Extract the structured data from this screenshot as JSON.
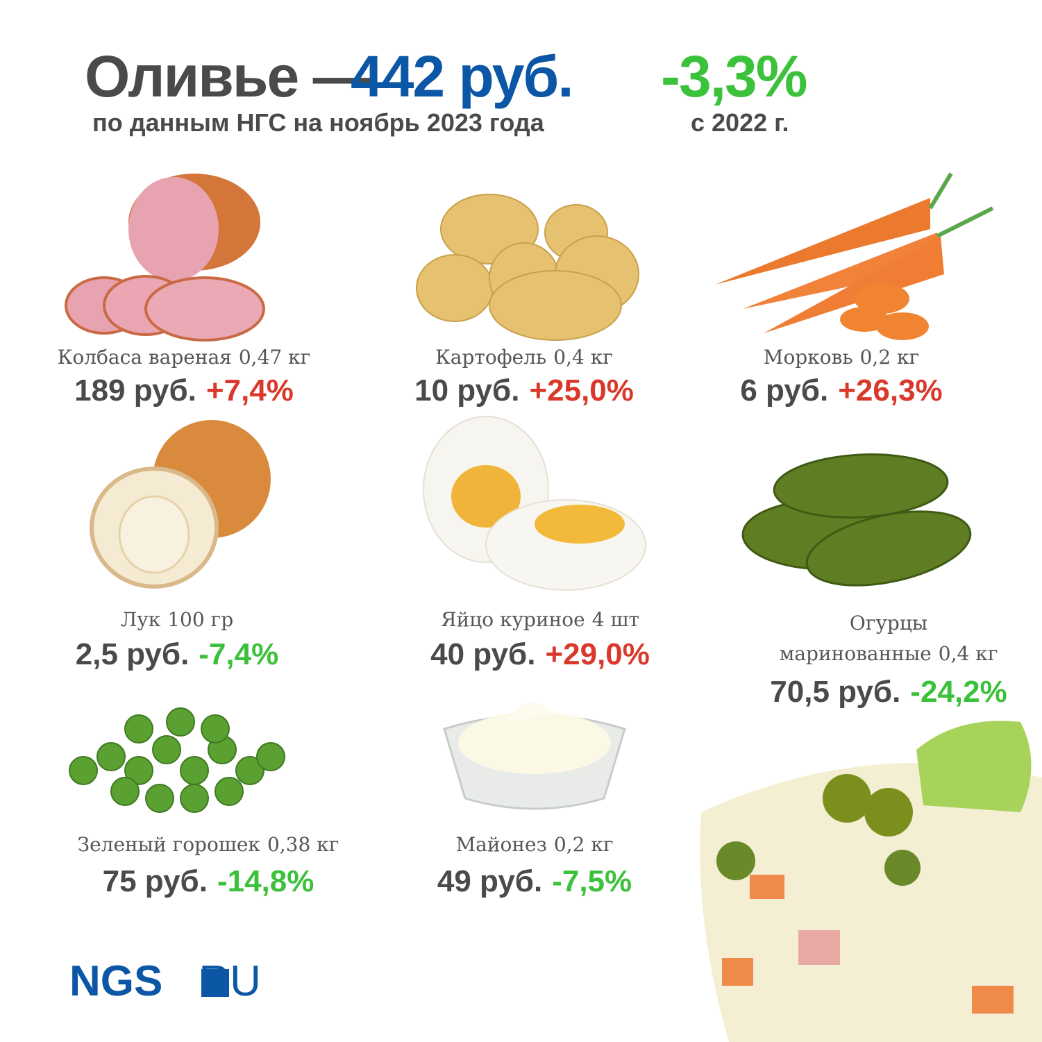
{
  "header": {
    "title": "Оливье —",
    "price": "442 руб.",
    "change": "-3,3%",
    "subtitle": "по данным НГС на ноябрь 2023 года",
    "change_note": "с 2022 г."
  },
  "items": [
    {
      "name": "Колбаса вареная",
      "quantity": "0,47 кг",
      "price": "189 руб.",
      "change": "+7,4%"
    },
    {
      "name": "Картофель",
      "quantity": "0,4 кг",
      "price": "10 руб.",
      "change": "+25,0%"
    },
    {
      "name": "Морковь",
      "quantity": "0,2 кг",
      "price": "6 руб.",
      "change": "+26,3%"
    },
    {
      "name": "Лук",
      "quantity": "100 гр",
      "price": "2,5 руб.",
      "change": "-7,4%"
    },
    {
      "name": "Яйцо куриное",
      "quantity": "4 шт",
      "price": "40 руб.",
      "change": "+29,0%"
    },
    {
      "name": "Огурцы маринованные",
      "quantity": "0,4 кг",
      "price": "70,5 руб.",
      "change": "-24,2%"
    },
    {
      "name": "Зеленый горошек",
      "quantity": "0,38 кг",
      "price": "75 руб.",
      "change": "-14,8%"
    },
    {
      "name": "Майонез",
      "quantity": "0,2 кг",
      "price": "49 руб.",
      "change": "-7,5%"
    }
  ],
  "logo": {
    "brand": "NGS",
    "domain": "RU"
  }
}
